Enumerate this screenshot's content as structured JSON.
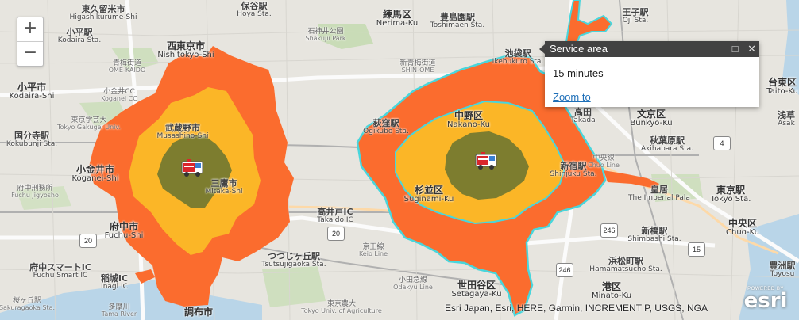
{
  "zoom": {
    "in_label": "+",
    "out_label": "−"
  },
  "popup": {
    "title": "Service area",
    "maximize_icon": "maximize-icon",
    "close_icon": "close-icon",
    "content": "15 minutes",
    "zoom_link": "Zoom to"
  },
  "attribution": "Esri Japan, Esri, HERE, Garmin, INCREMENT P, USGS, NGA",
  "powered_by": "POWERED BY",
  "esri_logo": "esri",
  "colors": {
    "ring_15min": "#fb6c2e",
    "ring_10min": "#fbb627",
    "ring_5min": "#7d7d2f",
    "selected_outline": "#48d6dc",
    "popup_header": "#424242",
    "link": "#1e6fb8"
  },
  "facilities": [
    {
      "name": "fire-station-west",
      "icon": "fire-truck-icon"
    },
    {
      "name": "fire-station-east",
      "icon": "fire-truck-icon"
    }
  ],
  "places": [
    {
      "jp": "東久留米市",
      "en": "Higashikurume-Shi"
    },
    {
      "jp": "小平駅",
      "en": "Kodaira Sta."
    },
    {
      "jp": "西東京市",
      "en": "Nishitokyo-Shi"
    },
    {
      "jp": "小平市",
      "en": "Kodaira-Shi"
    },
    {
      "jp": "国分寺駅",
      "en": "Kokubunji Sta."
    },
    {
      "jp": "小金井市",
      "en": "Koganei-Shi"
    },
    {
      "jp": "府中市",
      "en": "Fuchu-Shi"
    },
    {
      "jp": "調布市",
      "en": ""
    },
    {
      "jp": "武蔵野市",
      "en": "Musashino-Shi"
    },
    {
      "jp": "三鷹市",
      "en": "Mitaka-Shi"
    },
    {
      "jp": "練馬区",
      "en": "Nerima-Ku"
    },
    {
      "jp": "豊島園駅",
      "en": "Toshimaen Sta."
    },
    {
      "jp": "中野区",
      "en": "Nakano-Ku"
    },
    {
      "jp": "杉並区",
      "en": "Suginami-Ku"
    },
    {
      "jp": "世田谷区",
      "en": "Setagaya-Ku"
    },
    {
      "jp": "文京区",
      "en": "Bunkyo-Ku"
    },
    {
      "jp": "秋葉原駅",
      "en": "Akihabara Sta."
    },
    {
      "jp": "東京駅",
      "en": "Tokyo Sta."
    },
    {
      "jp": "中央区",
      "en": "Chuo-Ku"
    },
    {
      "jp": "新橋駅",
      "en": "Shimbashi Sta."
    },
    {
      "jp": "浜松町駅",
      "en": "Hamamatsucho Sta."
    },
    {
      "jp": "港区",
      "en": "Minato-Ku"
    },
    {
      "jp": "台東区",
      "en": "Taito-Ku"
    },
    {
      "jp": "高井戸IC",
      "en": "Takaido IC"
    },
    {
      "jp": "つつじヶ丘駅",
      "en": "Tsutsujigaoka Sta."
    },
    {
      "jp": "王子駅",
      "en": "Oji Sta."
    },
    {
      "jp": "皇居",
      "en": "The Imperial Pala"
    },
    {
      "jp": "府中スマートIC",
      "en": "Fuchu Smart IC"
    },
    {
      "jp": "稲城IC",
      "en": "Inagi IC"
    },
    {
      "jp": "保谷駅",
      "en": "Hoya Sta."
    },
    {
      "jp": "荻窪駅",
      "en": "Ogikubo Sta."
    },
    {
      "jp": "新宿駅",
      "en": "Shinjuku Sta."
    },
    {
      "jp": "高田",
      "en": "Takada"
    },
    {
      "jp": "浅草",
      "en": "Asak"
    },
    {
      "jp": "豊洲駅",
      "en": "Toyosu"
    },
    {
      "jp": "青梅街道",
      "en": "OME-KAIDO"
    },
    {
      "jp": "新青梅街道",
      "en": "SHIN-OME"
    },
    {
      "jp": "石神井公園",
      "en": "Shakujii Park"
    },
    {
      "jp": "東京学芸大",
      "en": "Tokyo Gakugei Univ."
    },
    {
      "jp": "小金井CC",
      "en": "Koganei CC"
    },
    {
      "jp": "府中刑務所",
      "en": "Fuchu Jigyosho"
    },
    {
      "jp": "京王線",
      "en": "Keio Line"
    },
    {
      "jp": "小田急線",
      "en": "Odakyu Line"
    },
    {
      "jp": "東京農大",
      "en": "Tokyo Univ. of Agriculture"
    },
    {
      "jp": "多摩川",
      "en": "Tama River"
    },
    {
      "jp": "中央線",
      "en": "Chuo Line"
    },
    {
      "jp": "桜ヶ丘駅",
      "en": "Sakuragaoka Sta."
    },
    {
      "jp": "池袋駅",
      "en": "Ikebukuro Sta."
    }
  ],
  "route_shields": [
    "20",
    "20",
    "246",
    "246",
    "15",
    "4"
  ]
}
